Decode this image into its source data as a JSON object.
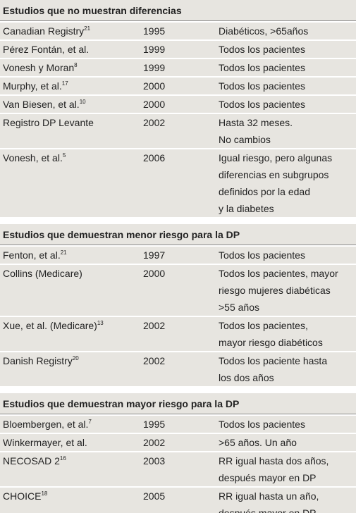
{
  "sections": [
    {
      "title": "Estudios que no muestran diferencias",
      "rows": [
        {
          "study": "Canadian Registry",
          "ref": "21",
          "year": "1995",
          "result": [
            "Diabéticos, >65años"
          ]
        },
        {
          "study": "Pérez Fontán, et al.",
          "year": "1999",
          "result": [
            "Todos los pacientes"
          ]
        },
        {
          "study": "Vonesh y Moran",
          "ref": "8",
          "year": "1999",
          "result": [
            "Todos los pacientes"
          ]
        },
        {
          "study": "Murphy, et al.",
          "ref": "17",
          "year": "2000",
          "result": [
            "Todos los pacientes"
          ]
        },
        {
          "study": "Van Biesen, et al.",
          "ref": "10",
          "year": "2000",
          "result": [
            "Todos los pacientes"
          ]
        },
        {
          "study": "Registro DP Levante",
          "year": "2002",
          "result": [
            "Hasta 32 meses.",
            "No cambios"
          ]
        },
        {
          "study": "Vonesh, et al.",
          "ref": "5",
          "year": "2006",
          "result": [
            "Igual riesgo, pero algunas",
            "diferencias en subgrupos",
            "definidos por la edad",
            "y la diabetes"
          ]
        }
      ]
    },
    {
      "title": "Estudios que demuestran menor riesgo para la DP",
      "rows": [
        {
          "study": "Fenton, et al.",
          "ref": "21",
          "year": "1997",
          "result": [
            "Todos los pacientes"
          ]
        },
        {
          "study": "Collins (Medicare)",
          "year": "2000",
          "result": [
            "Todos los pacientes, mayor",
            "riesgo mujeres diabéticas",
            ">55 años"
          ]
        },
        {
          "study": "Xue, et al. (Medicare)",
          "ref": "13",
          "year": "2002",
          "result": [
            "Todos los pacientes,",
            "mayor riesgo diabéticos"
          ]
        },
        {
          "study": "Danish Registry",
          "ref": "20",
          "year": "2002",
          "result": [
            "Todos los paciente hasta",
            "los dos años"
          ]
        }
      ]
    },
    {
      "title": "Estudios que demuestran mayor riesgo para la DP",
      "rows": [
        {
          "study": "Bloembergen, et al.",
          "ref": "7",
          "year": "1995",
          "result": [
            "Todos los pacientes"
          ]
        },
        {
          "study": "Winkermayer, et al.",
          "year": "2002",
          "result": [
            ">65 años. Un año"
          ]
        },
        {
          "study": "NECOSAD 2",
          "ref": "16",
          "year": "2003",
          "result": [
            "RR igual hasta dos años,",
            "después mayor en DP"
          ]
        },
        {
          "study": "CHOICE",
          "ref": "18",
          "year": "2005",
          "result": [
            "RR igual hasta un año,",
            "después mayor en DP"
          ]
        }
      ]
    }
  ]
}
